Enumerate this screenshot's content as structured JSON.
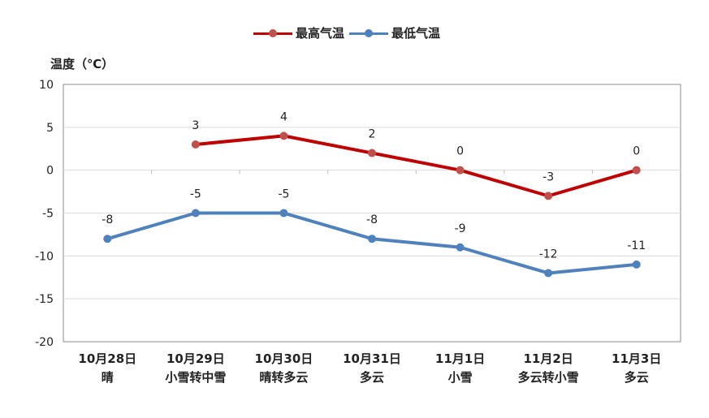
{
  "chart_data": {
    "type": "line",
    "title": "",
    "ylabel": "温度（℃）",
    "xlabel": "",
    "ylim": [
      -20,
      10
    ],
    "yticks": [
      10,
      5,
      0,
      -5,
      -10,
      -15,
      -20
    ],
    "grid": true,
    "legend_position": "top",
    "categories": [
      {
        "date": "10月28日",
        "weather": "晴"
      },
      {
        "date": "10月29日",
        "weather": "小雪转中雪"
      },
      {
        "date": "10月30日",
        "weather": "晴转多云"
      },
      {
        "date": "10月31日",
        "weather": "多云"
      },
      {
        "date": "11月1日",
        "weather": "小雪"
      },
      {
        "date": "11月2日",
        "weather": "多云转小雪"
      },
      {
        "date": "11月3日",
        "weather": "多云"
      }
    ],
    "series": [
      {
        "name": "最高气温",
        "color": "#c00000",
        "marker_color": "#c0504d",
        "values": [
          null,
          3,
          4,
          2,
          0,
          -3,
          0
        ]
      },
      {
        "name": "最低气温",
        "color": "#4f81bd",
        "marker_color": "#4f81bd",
        "values": [
          -8,
          -5,
          -5,
          -8,
          -9,
          -12,
          -11
        ]
      }
    ]
  }
}
